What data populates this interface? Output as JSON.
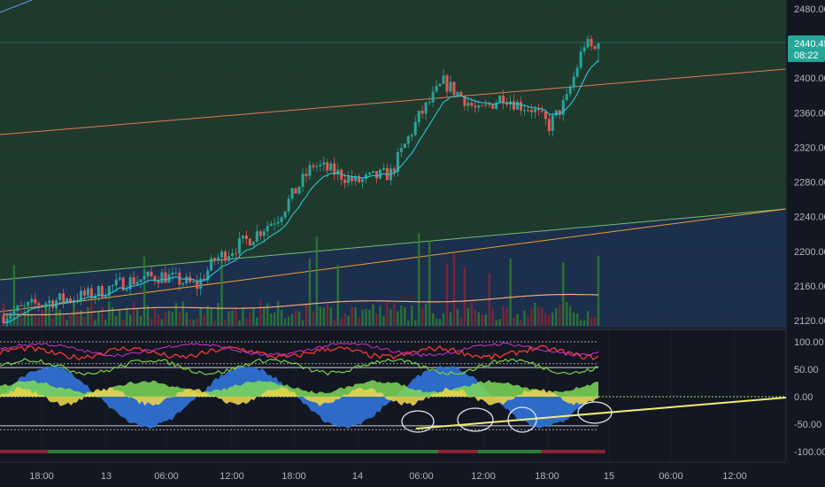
{
  "chart_data": [
    {
      "type": "candlestick",
      "title": "",
      "time_labels": [
        "18:00",
        "13",
        "06:00",
        "12:00",
        "18:00",
        "14",
        "06:00",
        "12:00",
        "18:00",
        "15",
        "06:00",
        "12:00"
      ],
      "y_ticks": [
        "2480.00",
        "2440.00",
        "2400.00",
        "2360.00",
        "2320.00",
        "2280.00",
        "2240.00",
        "2200.00",
        "2160.00",
        "2120.00"
      ],
      "ylim": [
        2112,
        2485
      ],
      "last_price": "2440.45",
      "last_price_countdown": "08:22",
      "trend_start": 2130,
      "trend_end": 2440,
      "colors": {
        "up": "#26a69a",
        "down": "#ef5350",
        "ma": "#26c6da",
        "vol_ma": "#f2a97a",
        "upper_zone": "#1f3a2c",
        "lower_zone": "#1c2f4d",
        "bg": "#131722"
      }
    },
    {
      "type": "oscillator",
      "title": "",
      "y_ticks": [
        "100.00",
        "50.00",
        "0.00",
        "-50.00",
        "-100.00"
      ],
      "ylim": [
        -104,
        106
      ],
      "levels": [
        100,
        60,
        53,
        0,
        -53,
        -60
      ],
      "colors": {
        "fill_blue": "#2f6fd1",
        "fill_green": "#7ed957",
        "fill_yellow": "#e6d34c",
        "line_red": "#e53935",
        "line_magenta": "#cc33cc",
        "line_green": "#76d04a",
        "trendline": "#f3ec72",
        "zero": "#b6e06a",
        "status_green": "#2e7d32",
        "status_red": "#8b2332"
      }
    }
  ]
}
